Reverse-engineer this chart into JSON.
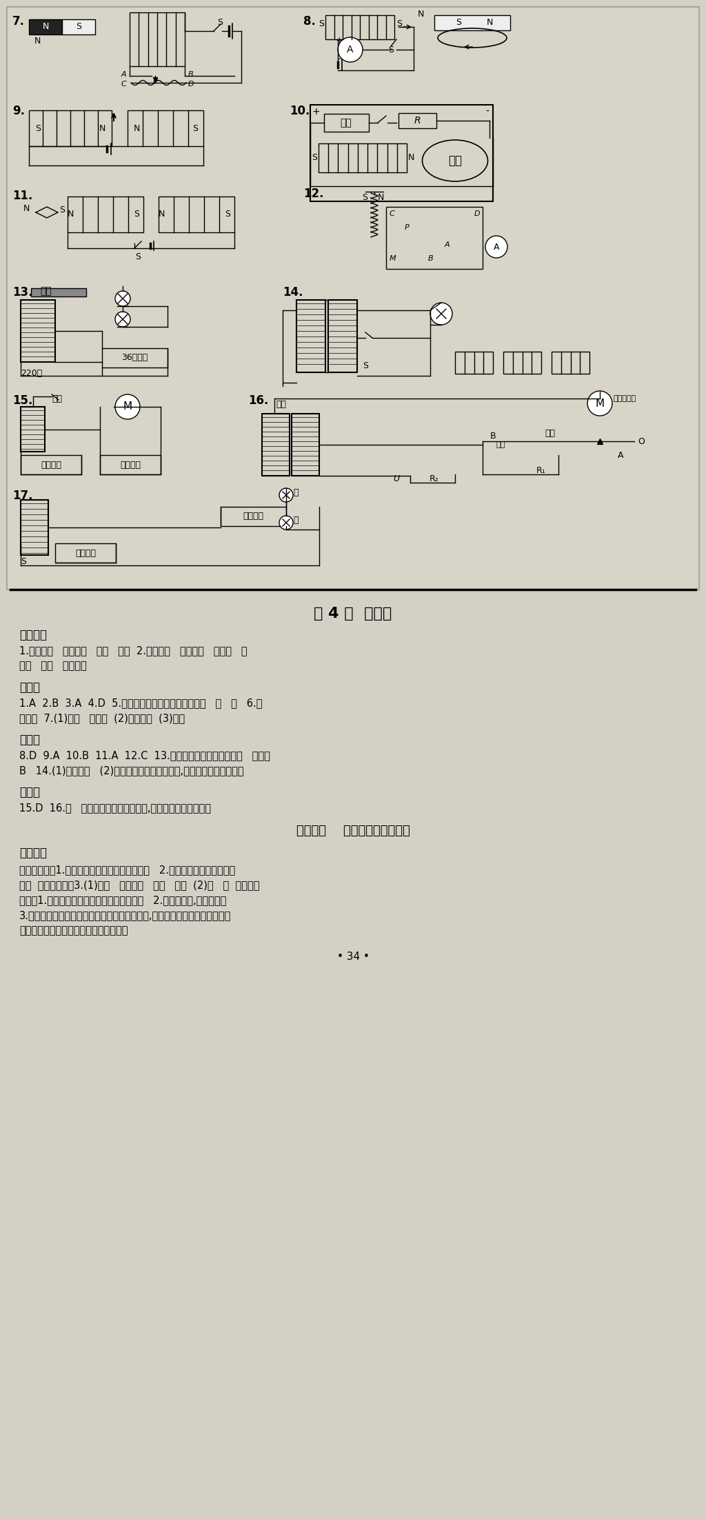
{
  "bg_color": "#d4d0c5",
  "page_width": 10.24,
  "page_height": 22.03,
  "title_section": "第 4 节  电动机",
  "knowledge_title": "知识管理",
  "k1": "1.电流方向   磁场方向   改变   不变  2.电流方向   磁场方向   不发生   电",
  "k2": "机械   惯性   电流方向",
  "basic_title": "基础题",
  "b1": "1.A  2.B  3.A  4.D  5.通电导体在磁场中受到力的作用   会   并   6.右",
  "b2": "电动机  7.(1)电刷   换向器  (2)反接电源  (3)变小",
  "mid_title": "中档题",
  "m1": "8.D  9.A  10.B  11.A  12.C  13.磁场对通电导体有力的作用   换向器",
  "m2": "B   14.(1)直线运动   (2)在磁场方向不变的情况下,改变导体中电流的方向",
  "ext_title": "拓展题",
  "e1": "15.D  16.会   电子的定向移动形成电流,磁场对电流有力的作用",
  "exp_title": "分组实验    装配直流电动机模型",
  "page_num": "• 34 •"
}
